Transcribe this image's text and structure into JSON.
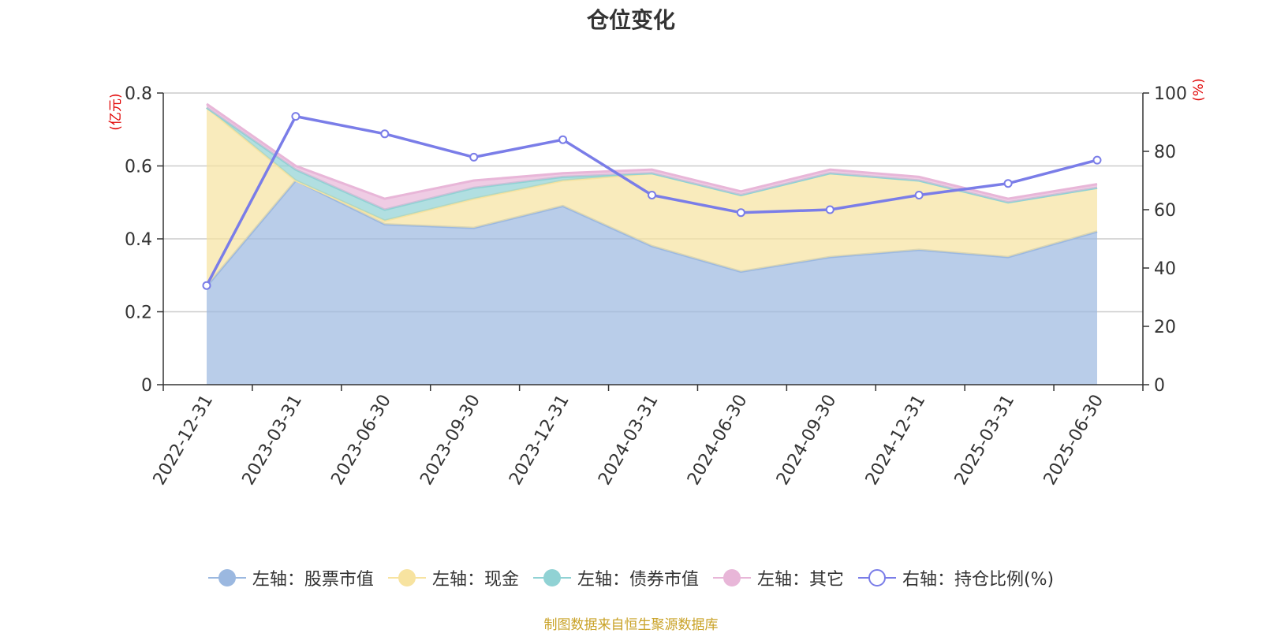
{
  "chart_data": {
    "type": "area",
    "title": "仓位变化",
    "x": [
      "2022-12-31",
      "2023-03-31",
      "2023-06-30",
      "2023-09-30",
      "2023-12-31",
      "2024-03-31",
      "2024-06-30",
      "2024-09-30",
      "2024-12-31",
      "2025-03-31",
      "2025-06-30"
    ],
    "left_axis": {
      "label": "(亿元)",
      "ylim": [
        0,
        0.8
      ],
      "ticks": [
        "0",
        "0.2",
        "0.4",
        "0.6",
        "0.8"
      ]
    },
    "right_axis": {
      "label": "(%)",
      "ylim": [
        0,
        100
      ],
      "ticks": [
        "0",
        "20",
        "40",
        "60",
        "80",
        "100"
      ]
    },
    "stacked": true,
    "series": [
      {
        "name": "左轴：股票市值",
        "axis": "left",
        "color": "#9bb8e0",
        "values": [
          0.27,
          0.56,
          0.44,
          0.43,
          0.49,
          0.38,
          0.31,
          0.35,
          0.37,
          0.35,
          0.42
        ]
      },
      {
        "name": "左轴：现金",
        "axis": "left",
        "color": "#f7e3a0",
        "values": [
          0.49,
          0.0,
          0.01,
          0.08,
          0.07,
          0.2,
          0.21,
          0.23,
          0.19,
          0.15,
          0.12
        ]
      },
      {
        "name": "左轴：债券市值",
        "axis": "left",
        "color": "#90d2d4",
        "values": [
          0.0,
          0.03,
          0.03,
          0.03,
          0.01,
          0.0,
          0.0,
          0.0,
          0.0,
          0.0,
          0.0
        ]
      },
      {
        "name": "左轴：其它",
        "axis": "left",
        "color": "#e8b6d8",
        "values": [
          0.01,
          0.01,
          0.03,
          0.02,
          0.01,
          0.01,
          0.01,
          0.01,
          0.01,
          0.01,
          0.01
        ]
      },
      {
        "name": "右轴：持仓比例(%)",
        "axis": "right",
        "type": "line",
        "color": "#7a7de8",
        "values": [
          34,
          92,
          86,
          78,
          84,
          65,
          59,
          60,
          65,
          69,
          77
        ]
      }
    ],
    "grid": true,
    "legend_position": "bottom"
  },
  "source_text": "制图数据来自恒生聚源数据库"
}
